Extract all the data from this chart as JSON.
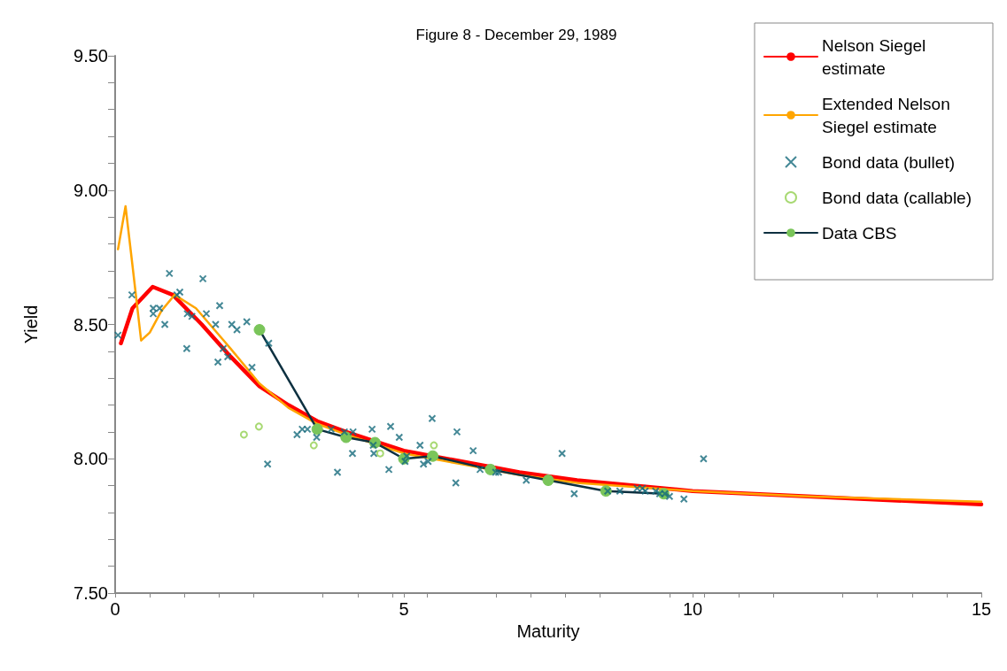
{
  "chart_data": {
    "type": "line",
    "title": "Figure 8 - December 29, 1989",
    "xlabel": "Maturity",
    "ylabel": "Yield",
    "xlim": [
      0,
      15
    ],
    "xticks": [
      0,
      5,
      10,
      15
    ],
    "ylim": [
      7.5,
      9.5
    ],
    "yticks": [
      {
        "value": 7.5,
        "label": "7.50"
      },
      {
        "value": 8,
        "label": "8.00"
      },
      {
        "value": 8.5,
        "label": "8.50"
      },
      {
        "value": 9,
        "label": "9.00"
      },
      {
        "value": 9.5,
        "label": "9.50"
      }
    ],
    "grid": false,
    "legend": "top right",
    "series": [
      {
        "name": "Nelson Siegel estimate",
        "color": "#ff0000",
        "marker": "none",
        "x": [
          0.1,
          0.3,
          0.65,
          1.0,
          1.5,
          2.0,
          2.5,
          3.0,
          3.5,
          4,
          5,
          6,
          7,
          8,
          10,
          12,
          15
        ],
        "values": [
          8.43,
          8.56,
          8.64,
          8.61,
          8.5,
          8.38,
          8.27,
          8.2,
          8.14,
          8.1,
          8.03,
          7.99,
          7.95,
          7.92,
          7.88,
          7.86,
          7.83
        ]
      },
      {
        "name": "Extended Nelson Siegel estimate",
        "color": "#ffa500",
        "marker": "none",
        "x": [
          0.05,
          0.18,
          0.3,
          0.45,
          0.6,
          0.8,
          1.03,
          1.4,
          2.0,
          2.5,
          3,
          3.5,
          4,
          5,
          6,
          7,
          8,
          10,
          12,
          15
        ],
        "values": [
          8.78,
          8.94,
          8.72,
          8.44,
          8.47,
          8.55,
          8.61,
          8.56,
          8.41,
          8.28,
          8.19,
          8.13,
          8.09,
          8.02,
          7.98,
          7.94,
          7.91,
          7.88,
          7.86,
          7.84
        ]
      },
      {
        "name": "Bond data (bullet)",
        "type": "scatter",
        "color": "#156a7c",
        "marker": "cross",
        "x": [
          0.05,
          0.29,
          0.66,
          0.66,
          0.77,
          0.86,
          0.94,
          1.07,
          1.12,
          1.24,
          1.25,
          1.33,
          1.52,
          1.58,
          1.74,
          1.81,
          1.78,
          1.87,
          1.95,
          2.02,
          2.11,
          2.28,
          2.37,
          2.66,
          2.64,
          3.15,
          3.24,
          3.33,
          3.49,
          3.74,
          3.85,
          3.97,
          4.11,
          4.12,
          4.45,
          4.47,
          4.48,
          4.74,
          4.77,
          4.92,
          5.02,
          5.05,
          5.28,
          5.34,
          5.42,
          5.49,
          5.92,
          5.9,
          6.2,
          6.32,
          6.59,
          6.64,
          7.12,
          7.74,
          7.95,
          8.53,
          8.74,
          9.04,
          9.13,
          9.18,
          9.36,
          9.43,
          9.52,
          9.6,
          9.85,
          10.19
        ],
        "values": [
          8.46,
          8.61,
          8.56,
          8.54,
          8.56,
          8.5,
          8.69,
          8.61,
          8.62,
          8.41,
          8.54,
          8.53,
          8.67,
          8.54,
          8.5,
          8.57,
          8.36,
          8.41,
          8.38,
          8.5,
          8.48,
          8.51,
          8.34,
          8.43,
          7.98,
          8.09,
          8.11,
          8.11,
          8.08,
          8.11,
          7.95,
          8.1,
          8.02,
          8.1,
          8.11,
          8.05,
          8.02,
          7.96,
          8.12,
          8.08,
          7.99,
          8.01,
          8.05,
          7.98,
          7.99,
          8.15,
          8.1,
          7.91,
          8.03,
          7.96,
          7.95,
          7.95,
          7.92,
          8.02,
          7.87,
          7.88,
          7.88,
          7.89,
          7.89,
          7.88,
          7.88,
          7.87,
          7.87,
          7.86,
          7.85,
          8.0
        ]
      },
      {
        "name": "Bond data (callable)",
        "type": "scatter",
        "color": "#92d050",
        "marker": "circle",
        "x": [
          2.23,
          2.49,
          3.44,
          4.59,
          5.52
        ],
        "values": [
          8.09,
          8.12,
          8.05,
          8.02,
          8.05
        ]
      },
      {
        "name": "Data CBS",
        "color": "#0d3040",
        "colors": [
          "#7ac55a",
          "#7ac55a",
          "#7ac55a",
          "#7ac55a",
          "#7ac55a",
          "#7ac55a",
          "#7ac55a",
          "#7ac55a",
          "#7ac55a",
          "#7ac55a"
        ],
        "marker": "circle",
        "x": [
          2.5,
          3.5,
          4,
          4.5,
          5,
          5.5,
          6.5,
          7.5,
          8.5,
          9.5
        ],
        "values": [
          8.48,
          8.11,
          8.08,
          8.06,
          8.0,
          8.01,
          7.96,
          7.92,
          7.88,
          7.87
        ]
      }
    ]
  }
}
